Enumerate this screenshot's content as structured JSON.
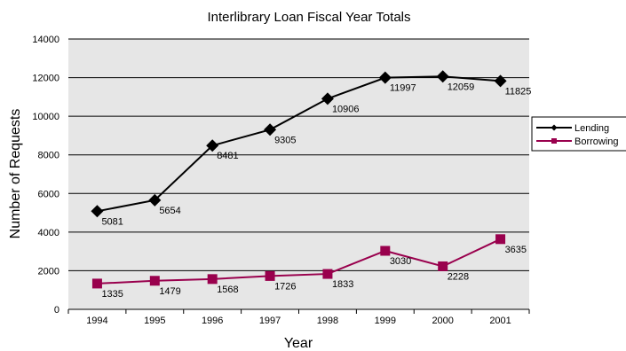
{
  "chart_data": {
    "type": "line",
    "title": "Interlibrary Loan Fiscal Year Totals",
    "xlabel": "Year",
    "ylabel": "Number of Requests",
    "categories": [
      "1994",
      "1995",
      "1996",
      "1997",
      "1998",
      "1999",
      "2000",
      "2001"
    ],
    "ylim": [
      0,
      14000
    ],
    "yticks": [
      0,
      2000,
      4000,
      6000,
      8000,
      10000,
      12000,
      14000
    ],
    "ytick_labels": [
      "0",
      "2000",
      "4000",
      "6000",
      "8000",
      "10000",
      "12000",
      "14000"
    ],
    "grid": true,
    "plot_background": "#e6e6e6",
    "legend_position": "right",
    "series": [
      {
        "name": "Lending",
        "marker": "diamond",
        "color": "#000000",
        "values": [
          5081,
          5654,
          8481,
          9305,
          10906,
          11997,
          12059,
          11825
        ],
        "labels": [
          "5081",
          "5654",
          "8481",
          "9305",
          "10906",
          "11997",
          "12059",
          "11825"
        ]
      },
      {
        "name": "Borrowing",
        "marker": "square",
        "color": "#99004d",
        "values": [
          1335,
          1479,
          1568,
          1726,
          1833,
          3030,
          2228,
          3635
        ],
        "labels": [
          "1335",
          "1479",
          "1568",
          "1726",
          "1833",
          "3030",
          "2228",
          "3635"
        ]
      }
    ]
  }
}
